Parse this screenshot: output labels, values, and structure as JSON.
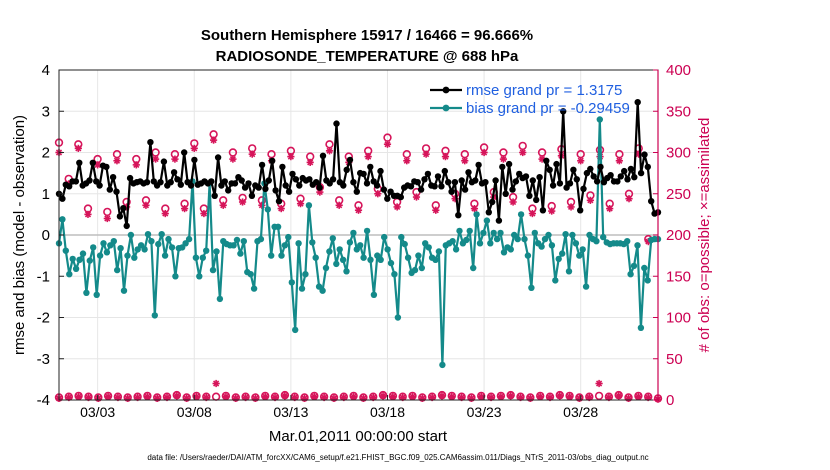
{
  "chart_data": {
    "type": "line",
    "title_line1": "Southern Hemisphere 15917 / 16466 = 96.666%",
    "title_line2": "RADIOSONDE_TEMPERATURE @ 688 hPa",
    "ylabel_left": "rmse and bias (model - observation)",
    "ylabel_right": "# of obs: o=possible; ×=assimilated",
    "xlabel": "Mar.01,2011 00:00:00 start",
    "footnote": "data file: /Users/raeder/DAI/ATM_forcXX/CAM6_setup/f.e21.FHIST_BGC.f09_025.CAM6assim.011/Diags_NTrS_2011-03/obs_diag_output.nc",
    "ylim_left": [
      -4,
      4
    ],
    "ylim_right": [
      0,
      400
    ],
    "xlim_days": [
      1.0,
      32.0
    ],
    "y_ticks_left": [
      "-4",
      "-3",
      "-2",
      "-1",
      "0",
      "1",
      "2",
      "3",
      "4"
    ],
    "y_ticks_right": [
      "0",
      "50",
      "100",
      "150",
      "200",
      "250",
      "300",
      "350",
      "400"
    ],
    "x_ticks": [
      {
        "day": 3,
        "label": "03/03"
      },
      {
        "day": 8,
        "label": "03/08"
      },
      {
        "day": 13,
        "label": "03/13"
      },
      {
        "day": 18,
        "label": "03/18"
      },
      {
        "day": 23,
        "label": "03/23"
      },
      {
        "day": 28,
        "label": "03/28"
      }
    ],
    "grid": true,
    "zero_line": 0,
    "colors": {
      "rmse": "#000000",
      "bias": "#148a8a",
      "obs": "#d6155a",
      "axis_right": "#cc0052",
      "legend_text": "#1f5fe0"
    },
    "series": [
      {
        "name": "rmse grand pr = 1.3175",
        "axis": "left",
        "values": [
          1.0,
          0.88,
          1.22,
          1.18,
          1.3,
          1.3,
          1.75,
          1.2,
          1.25,
          1.32,
          1.75,
          1.3,
          1.2,
          1.68,
          1.65,
          1.1,
          1.4,
          1.05,
          0.45,
          0.65,
          0.22,
          1.38,
          1.25,
          1.28,
          1.3,
          1.25,
          1.28,
          2.25,
          1.3,
          1.2,
          1.28,
          1.78,
          1.2,
          1.28,
          1.52,
          1.35,
          1.22,
          2.0,
          1.28,
          1.2,
          1.82,
          1.22,
          1.25,
          1.3,
          1.25,
          1.3,
          0.95,
          1.88,
          1.2,
          1.3,
          1.08,
          1.25,
          1.25,
          1.4,
          1.32,
          1.15,
          1.25,
          0.95,
          1.2,
          1.15,
          1.7,
          1.12,
          1.32,
          1.8,
          1.08,
          0.82,
          1.65,
          1.2,
          1.05,
          1.48,
          1.35,
          1.2,
          1.38,
          1.32,
          1.35,
          1.22,
          1.28,
          1.15,
          1.92,
          1.32,
          1.25,
          1.35,
          2.7,
          1.28,
          1.2,
          1.58,
          1.82,
          1.28,
          1.05,
          1.5,
          1.48,
          1.25,
          1.65,
          1.3,
          1.2,
          1.55,
          1.1,
          0.88,
          1.05,
          0.95,
          0.95,
          0.92,
          1.15,
          1.2,
          1.18,
          1.3,
          1.28,
          1.1,
          1.35,
          1.48,
          1.2,
          1.18,
          1.42,
          1.18,
          1.55,
          1.28,
          1.05,
          1.28,
          0.48,
          1.32,
          1.1,
          1.52,
          1.28,
          1.32,
          1.7,
          1.25,
          1.28,
          0.55,
          0.8,
          1.32,
          0.35,
          1.65,
          1.0,
          1.72,
          1.1,
          1.3,
          1.48,
          1.38,
          1.42,
          0.95,
          1.32,
          0.85,
          1.4,
          0.6,
          1.8,
          1.58,
          1.2,
          1.72,
          1.25,
          3.0,
          1.15,
          1.25,
          1.58,
          1.35,
          0.6,
          1.12,
          1.5,
          1.6,
          1.42,
          1.3,
          1.65,
          1.28,
          1.38,
          1.45,
          1.3,
          1.3,
          1.42,
          1.55,
          1.35,
          1.6,
          1.4,
          3.22,
          1.5,
          1.95,
          1.65,
          0.82,
          0.52,
          0.55
        ]
      },
      {
        "name": "bias grand pr = -0.29459",
        "axis": "left",
        "values": [
          -0.2,
          0.38,
          -0.38,
          -0.95,
          -0.58,
          -0.82,
          -0.6,
          -0.45,
          -1.4,
          -0.62,
          -0.3,
          -1.45,
          -0.5,
          -0.2,
          -0.42,
          -0.25,
          -0.15,
          -0.85,
          -0.32,
          -1.35,
          -0.5,
          0.0,
          -0.55,
          -0.35,
          -0.25,
          -0.35,
          0.02,
          -0.15,
          -1.95,
          -0.22,
          0.02,
          -0.5,
          -0.1,
          -0.3,
          -1.0,
          -0.32,
          -0.3,
          -0.2,
          -0.1,
          1.3,
          -0.55,
          -1.0,
          -0.55,
          -0.38,
          1.25,
          -0.85,
          -0.4,
          -1.55,
          -0.15,
          -0.22,
          -0.25,
          -0.25,
          -0.12,
          -0.45,
          -0.15,
          -0.9,
          -0.95,
          -1.3,
          -0.15,
          -0.1,
          1.25,
          0.62,
          -0.5,
          0.2,
          0.2,
          -0.5,
          -0.25,
          -0.05,
          -1.15,
          -2.3,
          -0.2,
          -1.3,
          -0.95,
          0.72,
          -0.18,
          -0.55,
          -1.25,
          -1.35,
          -0.8,
          -0.4,
          -0.08,
          -0.7,
          -0.35,
          -0.6,
          -0.88,
          -0.18,
          0.05,
          -0.35,
          -0.25,
          -0.55,
          0.1,
          -0.6,
          -1.45,
          -0.5,
          -0.6,
          -0.05,
          -0.35,
          -0.68,
          -0.95,
          -2.0,
          -0.05,
          -0.22,
          -0.55,
          -0.92,
          -0.85,
          -0.5,
          -0.8,
          -0.2,
          -0.3,
          -0.55,
          -0.6,
          -0.4,
          -3.15,
          -0.25,
          -0.2,
          -0.15,
          -0.35,
          0.1,
          -0.2,
          -0.12,
          0.1,
          -0.8,
          0.5,
          -0.2,
          0.05,
          0.35,
          -0.2,
          0.05,
          -0.1,
          0.05,
          -0.42,
          -0.3,
          -0.35,
          0.0,
          -0.1,
          0.5,
          -0.1,
          -0.5,
          -1.28,
          0.05,
          -0.2,
          -0.28,
          -0.1,
          0.0,
          -0.25,
          -1.1,
          -0.58,
          -0.45,
          0.02,
          -0.88,
          0.0,
          -0.2,
          -0.5,
          -0.35,
          -1.25,
          0.0,
          -0.1,
          -0.15,
          2.8,
          -0.05,
          -0.18,
          -0.22,
          -0.2,
          -0.2,
          -0.2,
          -0.22,
          -0.15,
          -0.95,
          -0.75,
          -0.25,
          -2.25,
          -0.8,
          -1.1,
          -0.12,
          -0.1,
          -0.1
        ]
      },
      {
        "name": "possible obs",
        "axis": "right",
        "marker": "o",
        "x": [
          1.0,
          1.5,
          2.0,
          2.5,
          3.0,
          3.5,
          4.0,
          4.5,
          5.0,
          5.5,
          6.0,
          6.5,
          7.0,
          7.5,
          8.0,
          8.5,
          9.0,
          9.5,
          10.0,
          10.5,
          11.0,
          11.5,
          12.0,
          12.5,
          13.0,
          13.5,
          14.0,
          14.5,
          15.0,
          15.5,
          16.0,
          16.5,
          17.0,
          17.5,
          18.0,
          18.5,
          19.0,
          19.5,
          20.0,
          20.5,
          21.0,
          21.5,
          22.0,
          22.5,
          23.0,
          23.5,
          24.0,
          24.5,
          25.0,
          25.5,
          26.0,
          26.5,
          27.0,
          27.5,
          28.0,
          28.5,
          29.0,
          29.5,
          30.0,
          30.5,
          31.0,
          31.5
        ],
        "values": [
          312,
          268,
          310,
          232,
          292,
          228,
          298,
          240,
          292,
          242,
          300,
          232,
          298,
          238,
          311,
          232,
          322,
          242,
          300,
          245,
          305,
          242,
          298,
          238,
          302,
          244,
          295,
          258,
          310,
          242,
          295,
          236,
          302,
          256,
          318,
          240,
          298,
          252,
          305,
          236,
          302,
          250,
          298,
          238,
          306,
          252,
          300,
          246,
          308,
          232,
          300,
          235,
          304,
          240,
          298,
          248,
          303,
          238,
          298,
          250,
          305,
          195
        ]
      },
      {
        "name": "assimilated obs",
        "axis": "right",
        "marker": "x",
        "x": [
          1.0,
          1.5,
          2.0,
          2.5,
          3.0,
          3.5,
          4.0,
          4.5,
          5.0,
          5.5,
          6.0,
          6.5,
          7.0,
          7.5,
          8.0,
          8.5,
          9.0,
          9.5,
          10.0,
          10.5,
          11.0,
          11.5,
          12.0,
          12.5,
          13.0,
          13.5,
          14.0,
          14.5,
          15.0,
          15.5,
          16.0,
          16.5,
          17.0,
          17.5,
          18.0,
          18.5,
          19.0,
          19.5,
          20.0,
          20.5,
          21.0,
          21.5,
          22.0,
          22.5,
          23.0,
          23.5,
          24.0,
          24.5,
          25.0,
          25.5,
          26.0,
          26.5,
          27.0,
          27.5,
          28.0,
          28.5,
          29.0,
          29.5,
          30.0,
          30.5,
          31.0,
          31.5
        ],
        "values": [
          300,
          262,
          305,
          225,
          285,
          220,
          290,
          234,
          285,
          236,
          292,
          226,
          292,
          232,
          305,
          226,
          315,
          236,
          292,
          240,
          298,
          236,
          290,
          232,
          295,
          238,
          288,
          252,
          302,
          236,
          288,
          230,
          295,
          250,
          310,
          234,
          290,
          246,
          298,
          230,
          295,
          244,
          290,
          232,
          300,
          246,
          292,
          240,
          300,
          226,
          292,
          229,
          296,
          234,
          290,
          242,
          295,
          232,
          290,
          244,
          298,
          192
        ]
      },
      {
        "name": "bottom possible",
        "axis": "right",
        "marker": "o",
        "values": [
          3,
          4,
          5,
          4,
          3,
          5,
          4,
          3,
          4,
          5,
          3,
          4,
          6,
          3,
          5,
          4,
          4,
          5,
          3,
          4,
          3,
          5,
          4,
          6,
          4,
          3,
          5,
          4,
          3,
          4,
          5,
          3,
          4,
          6,
          5,
          4,
          5,
          3,
          4,
          6,
          5,
          4,
          3,
          5,
          4,
          5,
          6,
          4,
          3,
          5,
          4,
          6,
          5,
          3,
          4,
          5,
          4,
          6,
          3,
          5,
          4,
          2
        ]
      },
      {
        "name": "bottom assimilated",
        "axis": "right",
        "marker": "x",
        "values": [
          2,
          3,
          4,
          3,
          2,
          4,
          3,
          2,
          3,
          4,
          2,
          3,
          5,
          2,
          4,
          3,
          20,
          4,
          2,
          3,
          2,
          4,
          3,
          5,
          3,
          2,
          4,
          3,
          2,
          3,
          4,
          2,
          3,
          5,
          4,
          3,
          4,
          2,
          3,
          5,
          4,
          3,
          2,
          4,
          3,
          4,
          5,
          3,
          2,
          4,
          3,
          5,
          4,
          2,
          3,
          20,
          3,
          5,
          2,
          4,
          3,
          1
        ]
      }
    ],
    "legend": [
      "rmse grand pr = 1.3175",
      "bias grand pr = -0.29459"
    ],
    "legend_location": "top-right"
  }
}
